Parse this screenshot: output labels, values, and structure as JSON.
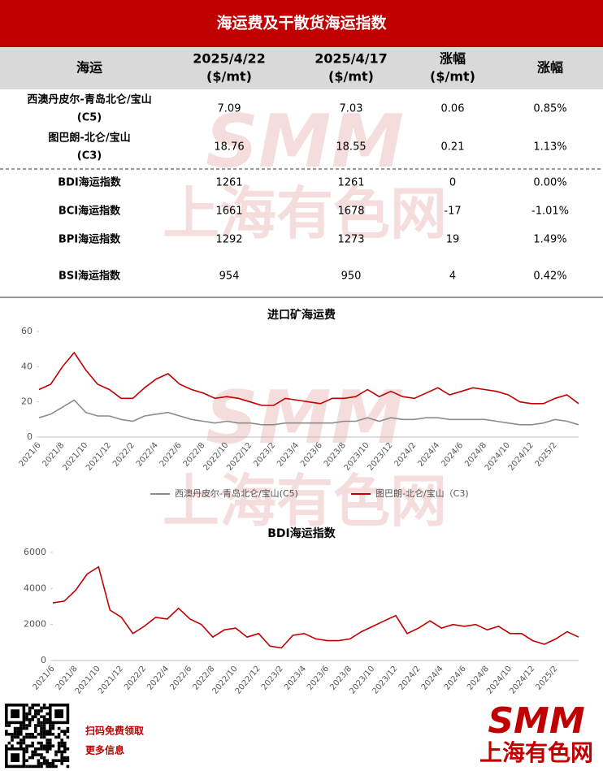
{
  "title": "海运费及干散货海运指数",
  "table": {
    "columns": [
      [
        "海运"
      ],
      [
        "2025/4/22",
        "($/mt)"
      ],
      [
        "2025/4/17",
        "($/mt)"
      ],
      [
        "涨幅",
        "($/mt)"
      ],
      [
        "涨幅"
      ]
    ],
    "rows": [
      [
        [
          "西澳丹皮尔-青岛北仑/宝山",
          "(C5)"
        ],
        "7.09",
        "7.03",
        "0.06",
        "0.85%"
      ],
      [
        [
          "图巴朗-北仑/宝山",
          "(C3)"
        ],
        "18.76",
        "18.55",
        "0.21",
        "1.13%"
      ],
      [
        [
          "BDI海运指数"
        ],
        "1261",
        "1261",
        "0",
        "0.00%"
      ],
      [
        [
          "BCI海运指数"
        ],
        "1661",
        "1678",
        "-17",
        "-1.01%"
      ],
      [
        [
          "BPI海运指数"
        ],
        "1292",
        "1273",
        "19",
        "1.49%"
      ],
      [
        [
          "BSI海运指数"
        ],
        "954",
        "950",
        "4",
        "0.42%"
      ]
    ]
  },
  "chart_data": [
    {
      "type": "line",
      "title": "进口矿海运费",
      "categories": [
        "2021/6",
        null,
        "2021/8",
        null,
        "2021/10",
        null,
        "2021/12",
        null,
        "2022/2",
        null,
        "2022/4",
        null,
        "2022/6",
        null,
        "2022/8",
        null,
        "2022/10",
        null,
        "2022/12",
        null,
        "2023/2",
        null,
        "2023/4",
        null,
        "2023/6",
        null,
        "2023/8",
        null,
        "2023/10",
        null,
        "2023/12",
        null,
        "2024/2",
        null,
        "2024/4",
        null,
        "2024/6",
        null,
        "2024/8",
        null,
        "2024/10",
        null,
        "2024/12",
        null,
        "2025/2",
        null,
        null
      ],
      "series": [
        {
          "name": "西澳丹皮尔-青岛北仑/宝山(C5)",
          "color": "#8c8c8c",
          "values": [
            11,
            13,
            17,
            21,
            14,
            12,
            12,
            10,
            9,
            12,
            13,
            14,
            12,
            10,
            9,
            8,
            9,
            8,
            8,
            7,
            7,
            8,
            8,
            8,
            8,
            8,
            9,
            9,
            11,
            9,
            11,
            10,
            10,
            11,
            11,
            10,
            10,
            10,
            10,
            9,
            8,
            7,
            7,
            8,
            10,
            9,
            7
          ]
        },
        {
          "name": "图巴朗-北仑/宝山（C3)",
          "color": "#c00000",
          "values": [
            27,
            30,
            40,
            48,
            38,
            30,
            27,
            22,
            22,
            28,
            33,
            36,
            30,
            27,
            25,
            22,
            23,
            22,
            20,
            18,
            18,
            22,
            21,
            20,
            19,
            22,
            22,
            23,
            27,
            23,
            26,
            23,
            22,
            25,
            28,
            24,
            26,
            28,
            27,
            26,
            24,
            20,
            19,
            19,
            22,
            24,
            19
          ]
        }
      ],
      "ylim": [
        0,
        60
      ],
      "yticks": [
        0,
        20,
        40,
        60
      ],
      "legend": "bottom"
    },
    {
      "type": "line",
      "title": "BDI海运指数",
      "categories": [
        "2021/6",
        null,
        "2021/8",
        null,
        "2021/10",
        null,
        "2021/12",
        null,
        "2022/2",
        null,
        "2022/4",
        null,
        "2022/6",
        null,
        "2022/8",
        null,
        "2022/10",
        null,
        "2022/12",
        null,
        "2023/2",
        null,
        "2023/4",
        null,
        "2023/6",
        null,
        "2023/8",
        null,
        "2023/10",
        null,
        "2023/12",
        null,
        "2024/2",
        null,
        "2024/4",
        null,
        "2024/6",
        null,
        "2024/8",
        null,
        "2024/10",
        null,
        "2024/12",
        null,
        "2025/2",
        null,
        null
      ],
      "series": [
        {
          "name": "BDI",
          "color": "#c00000",
          "values": [
            3200,
            3300,
            3900,
            4800,
            5200,
            2800,
            2400,
            1500,
            1900,
            2400,
            2300,
            2900,
            2300,
            2000,
            1300,
            1700,
            1800,
            1300,
            1500,
            800,
            700,
            1400,
            1500,
            1200,
            1100,
            1100,
            1200,
            1600,
            1900,
            2200,
            2500,
            1500,
            1800,
            2200,
            1800,
            2000,
            1900,
            2000,
            1700,
            1900,
            1500,
            1500,
            1100,
            900,
            1200,
            1600,
            1300
          ]
        }
      ],
      "ylim": [
        0,
        6000
      ],
      "yticks": [
        0,
        2000,
        4000,
        6000
      ],
      "legend": "none"
    }
  ],
  "footer": {
    "qr_lines": [
      "扫码免费领取",
      "更多信息"
    ]
  },
  "brand": {
    "short": "SMM",
    "name": "上海有色网"
  }
}
